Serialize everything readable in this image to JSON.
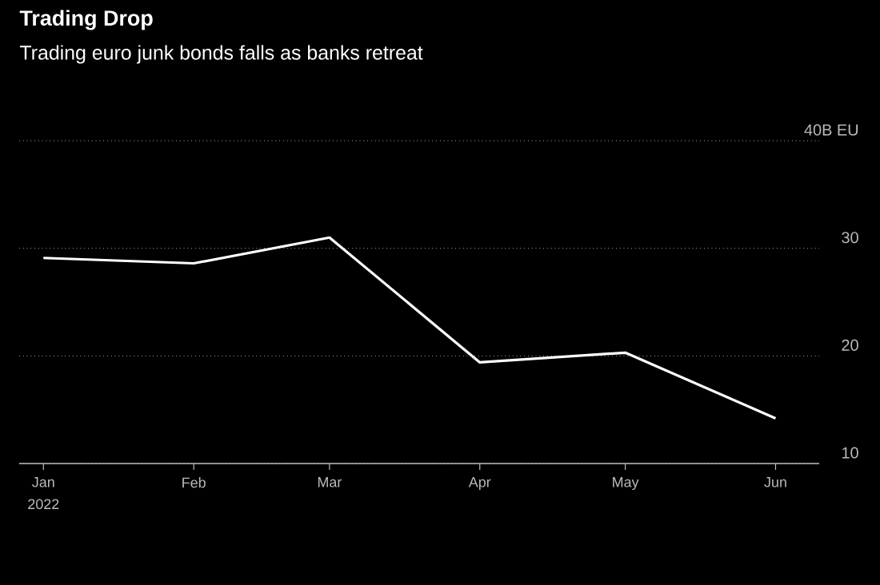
{
  "chart_data": {
    "type": "line",
    "title": "Trading Drop",
    "subtitle": "Trading euro junk bonds falls as banks retreat",
    "x": [
      "2022-01-01",
      "2022-02-01",
      "2022-03-01",
      "2022-04-01",
      "2022-05-01",
      "2022-06-01"
    ],
    "series": [
      {
        "color": "#ffffff",
        "values": [
          29.1,
          28.6,
          31.0,
          19.4,
          20.3,
          14.2
        ]
      }
    ],
    "xlim": [
      "2021-12-27",
      "2022-06-10"
    ],
    "xticks": [
      {
        "value": "2022-01-01",
        "label": "Jan"
      },
      {
        "value": "2022-02-01",
        "label": "Feb"
      },
      {
        "value": "2022-03-01",
        "label": "Mar"
      },
      {
        "value": "2022-04-01",
        "label": "Apr"
      },
      {
        "value": "2022-05-01",
        "label": "May"
      },
      {
        "value": "2022-06-01",
        "label": "Jun"
      }
    ],
    "ylim": [
      10,
      40
    ],
    "yticks": [
      10,
      20,
      30,
      {
        "value": 40,
        "label": "40B EU"
      }
    ],
    "grid": "y",
    "marker": "none",
    "line_style": "solid",
    "annotations": [
      "2022"
    ]
  }
}
